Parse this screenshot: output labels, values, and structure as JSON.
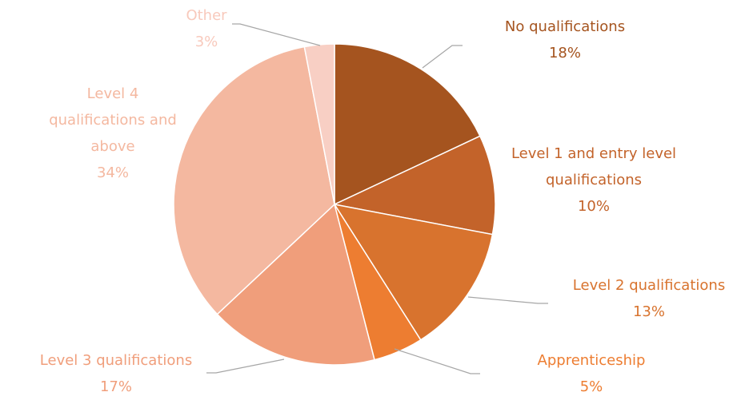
{
  "chart_data": {
    "type": "pie",
    "categories": [
      "No qualifications",
      "Level 1 and entry level qualifications",
      "Level 2 qualifications",
      "Apprenticeship",
      "Level 3 qualifications",
      "Level 4 qualifications and above",
      "Other"
    ],
    "values": [
      18,
      10,
      13,
      5,
      17,
      34,
      3
    ],
    "value_labels": [
      "18%",
      "10%",
      "13%",
      "5%",
      "17%",
      "34%",
      "3%"
    ],
    "colors": [
      "#a5541f",
      "#c3632a",
      "#d8732e",
      "#ed7d31",
      "#f09e7b",
      "#f4b8a0",
      "#f8cfc4"
    ],
    "label_colors": [
      "#a5541f",
      "#c3632a",
      "#d8732e",
      "#ed7d31",
      "#f09e7b",
      "#f4b8a0",
      "#f8c9bc"
    ]
  }
}
